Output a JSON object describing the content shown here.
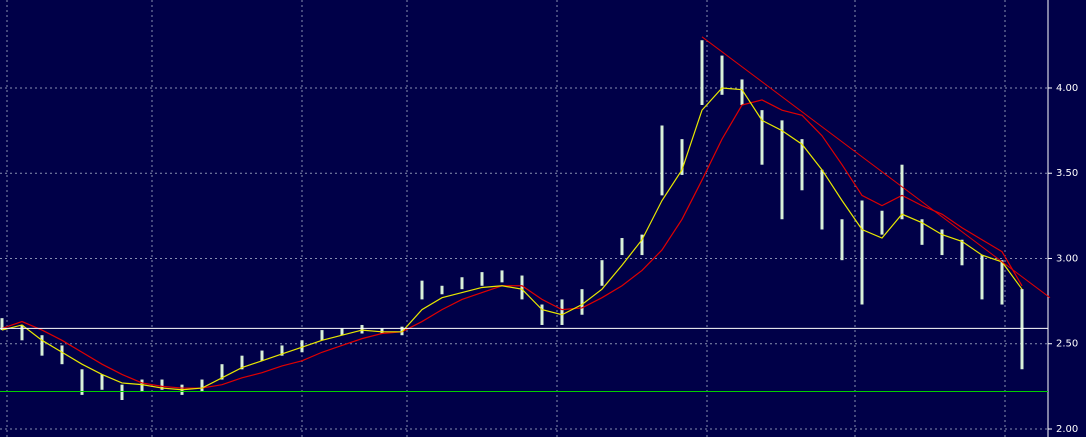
{
  "chart_data": {
    "type": "ohlc",
    "x": [
      0,
      1,
      2,
      3,
      4,
      5,
      6,
      7,
      8,
      9,
      10,
      11,
      12,
      13,
      14,
      15,
      16,
      17,
      18,
      19,
      20,
      21,
      22,
      23,
      24,
      25,
      26,
      27,
      28,
      29,
      30,
      31,
      32,
      33,
      34,
      35,
      36,
      37,
      38,
      39,
      40,
      41,
      42,
      43,
      44,
      45,
      46,
      47,
      48,
      49,
      50,
      51
    ],
    "high": [
      2.65,
      2.61,
      2.55,
      2.49,
      2.35,
      2.32,
      2.26,
      2.29,
      2.29,
      2.26,
      2.29,
      2.38,
      2.43,
      2.46,
      2.49,
      2.52,
      2.58,
      2.59,
      2.61,
      2.59,
      2.6,
      2.87,
      2.84,
      2.89,
      2.92,
      2.93,
      2.9,
      2.73,
      2.76,
      2.82,
      2.99,
      3.12,
      3.14,
      3.78,
      3.7,
      4.28,
      4.19,
      4.05,
      3.87,
      3.81,
      3.7,
      3.52,
      3.23,
      3.34,
      3.28,
      3.55,
      3.23,
      3.17,
      3.11,
      3.02,
      2.99,
      2.82
    ],
    "low": [
      2.58,
      2.52,
      2.43,
      2.38,
      2.2,
      2.23,
      2.17,
      2.22,
      2.23,
      2.2,
      2.22,
      2.29,
      2.35,
      2.4,
      2.43,
      2.45,
      2.52,
      2.55,
      2.56,
      2.56,
      2.55,
      2.76,
      2.79,
      2.82,
      2.84,
      2.86,
      2.76,
      2.61,
      2.61,
      2.67,
      2.84,
      3.02,
      3.02,
      3.37,
      3.49,
      3.9,
      3.96,
      3.9,
      3.55,
      3.23,
      3.4,
      3.17,
      2.99,
      2.73,
      3.14,
      3.23,
      3.08,
      3.02,
      2.96,
      2.76,
      2.73,
      2.35
    ],
    "bar_color": "#d8f0d8",
    "series": [
      {
        "color": "#e00000",
        "values": [
          2.59,
          2.63,
          2.58,
          2.52,
          2.45,
          2.38,
          2.32,
          2.27,
          2.25,
          2.24,
          2.24,
          2.26,
          2.3,
          2.33,
          2.37,
          2.4,
          2.45,
          2.49,
          2.53,
          2.56,
          2.57,
          2.63,
          2.7,
          2.76,
          2.8,
          2.84,
          2.84,
          2.76,
          2.7,
          2.71,
          2.77,
          2.84,
          2.93,
          3.05,
          3.23,
          3.46,
          3.7,
          3.9,
          3.93,
          3.87,
          3.84,
          3.72,
          3.55,
          3.37,
          3.31,
          3.37,
          3.31,
          3.26,
          3.18,
          3.11,
          3.04,
          2.84
        ]
      },
      {
        "color": "#e8e800",
        "values": [
          2.58,
          2.61,
          2.52,
          2.45,
          2.38,
          2.32,
          2.27,
          2.26,
          2.24,
          2.23,
          2.24,
          2.3,
          2.36,
          2.4,
          2.44,
          2.48,
          2.52,
          2.55,
          2.58,
          2.57,
          2.57,
          2.7,
          2.77,
          2.8,
          2.83,
          2.84,
          2.82,
          2.7,
          2.67,
          2.73,
          2.82,
          2.96,
          3.11,
          3.34,
          3.52,
          3.87,
          4.0,
          3.99,
          3.81,
          3.75,
          3.67,
          3.52,
          3.34,
          3.17,
          3.12,
          3.26,
          3.21,
          3.14,
          3.1,
          3.02,
          2.98,
          2.82
        ]
      }
    ],
    "trend_line": {
      "color": "#e00000",
      "x": [
        35,
        52.4
      ],
      "values": [
        4.3,
        2.77
      ]
    },
    "hlines": [
      {
        "value": 2.59,
        "color": "#ffffff"
      },
      {
        "value": 2.22,
        "color": "#00d000"
      }
    ],
    "xlim": [
      -0.1,
      52.3
    ],
    "ylim": [
      1.953,
      4.516
    ],
    "yticks": [
      {
        "value": 2,
        "label": "2.00"
      },
      {
        "value": 2.5,
        "label": "2.50"
      },
      {
        "value": 3,
        "label": "3.00"
      },
      {
        "value": 3.5,
        "label": "3.50"
      },
      {
        "value": 4,
        "label": "4.00"
      }
    ],
    "grid": true
  }
}
